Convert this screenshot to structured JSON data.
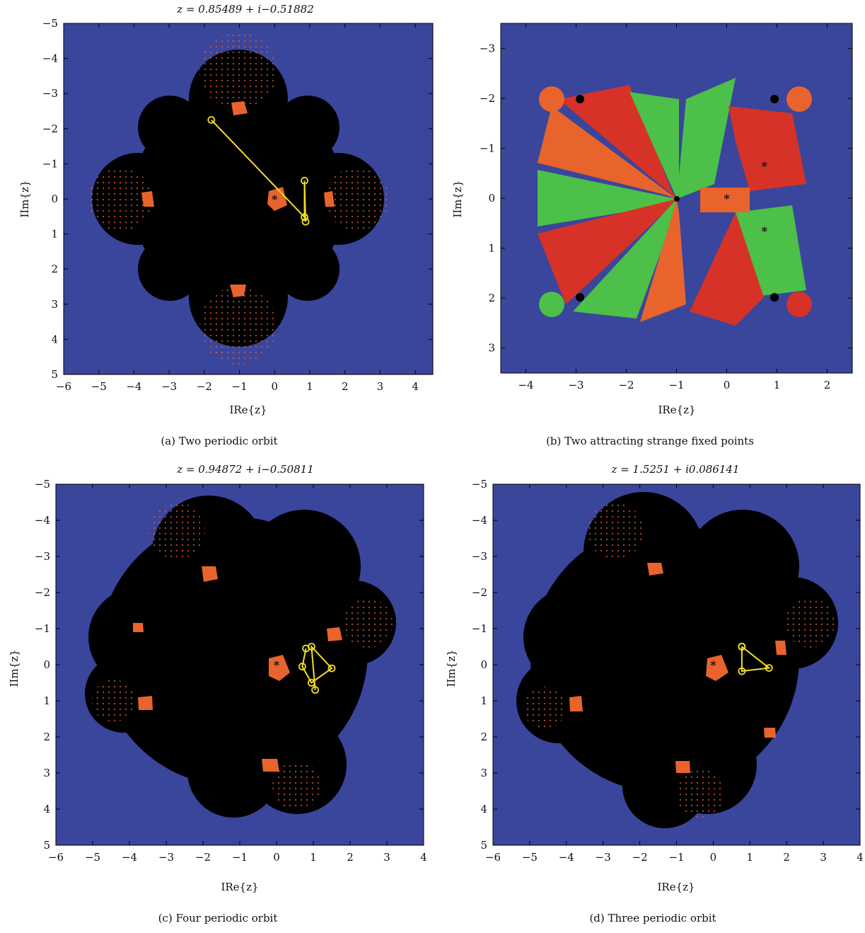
{
  "figure": {
    "colors": {
      "background": "#3a459c",
      "julia_set": "#000000",
      "basin_orange": "#e8642c",
      "basin_red": "#d63228",
      "basin_green": "#4cc048",
      "orbit": "#f4e023",
      "fixed_point_marker": "#ffffff"
    },
    "panels": [
      {
        "id": "a",
        "title": "z = 0.85489 + i−0.51882",
        "caption": "(a)  Two periodic orbit",
        "xlabel": "IRe{z}",
        "ylabel": "IIm{z}",
        "xlim": [
          -6,
          4.5
        ],
        "ylim": [
          -5,
          5
        ],
        "xticks": [
          "−6",
          "−5",
          "−4",
          "−3",
          "−2",
          "−1",
          "0",
          "1",
          "2",
          "3",
          "4"
        ],
        "yticks": [
          "−5",
          "−4",
          "−3",
          "−2",
          "−1",
          "0",
          "1",
          "2",
          "3",
          "4",
          "5"
        ],
        "orbit": [
          [
            -1.8,
            -2.25
          ],
          [
            0.85,
            0.52
          ],
          [
            0.85,
            -0.52
          ],
          [
            0.88,
            0.65
          ]
        ],
        "fixed_points": [
          [
            0,
            0
          ]
        ]
      },
      {
        "id": "b",
        "title": "",
        "caption": "(b)  Two attracting strange fixed points",
        "xlabel": "IRe{z}",
        "ylabel": "IIm{z}",
        "xlim": [
          -4.5,
          2.5
        ],
        "ylim": [
          -3.5,
          3.5
        ],
        "xticks": [
          "−4",
          "−3",
          "−2",
          "−1",
          "0",
          "1",
          "2"
        ],
        "yticks": [
          "−3",
          "−2",
          "−1",
          "0",
          "1",
          "2",
          "3"
        ],
        "orbit": [],
        "fixed_points": [
          [
            0,
            0
          ],
          [
            0.75,
            -0.65
          ],
          [
            0.75,
            0.65
          ]
        ]
      },
      {
        "id": "c",
        "title": "z = 0.94872 + i−0.50811",
        "caption": "(c)  Four periodic orbit",
        "xlabel": "IRe{z}",
        "ylabel": "IIm{z}",
        "xlim": [
          -6,
          4
        ],
        "ylim": [
          -5,
          5
        ],
        "xticks": [
          "−6",
          "−5",
          "−4",
          "−3",
          "−2",
          "−1",
          "0",
          "1",
          "2",
          "3",
          "4"
        ],
        "yticks": [
          "−5",
          "−4",
          "−3",
          "−2",
          "−1",
          "0",
          "1",
          "2",
          "3",
          "4",
          "5"
        ],
        "orbit": [
          [
            1.05,
            0.7
          ],
          [
            0.95,
            -0.5
          ],
          [
            1.5,
            0.1
          ],
          [
            0.95,
            0.5
          ],
          [
            0.7,
            0.05
          ],
          [
            0.8,
            -0.45
          ]
        ],
        "fixed_points": [
          [
            0,
            0
          ]
        ]
      },
      {
        "id": "d",
        "title": "z = 1.5251 + i0.086141",
        "caption": "(d)  Three periodic orbit",
        "xlabel": "IRe{z}",
        "ylabel": "IIm{z}",
        "xlim": [
          -6,
          4
        ],
        "ylim": [
          -5,
          5
        ],
        "xticks": [
          "−6",
          "−5",
          "−4",
          "−3",
          "−2",
          "−1",
          "0",
          "1",
          "2",
          "3",
          "4"
        ],
        "yticks": [
          "−5",
          "−4",
          "−3",
          "−2",
          "−1",
          "0",
          "1",
          "2",
          "3",
          "4",
          "5"
        ],
        "orbit": [
          [
            0.78,
            -0.5
          ],
          [
            1.52,
            0.09
          ],
          [
            0.78,
            0.18
          ],
          [
            0.78,
            -0.5
          ]
        ],
        "fixed_points": [
          [
            0,
            0
          ]
        ]
      }
    ]
  }
}
